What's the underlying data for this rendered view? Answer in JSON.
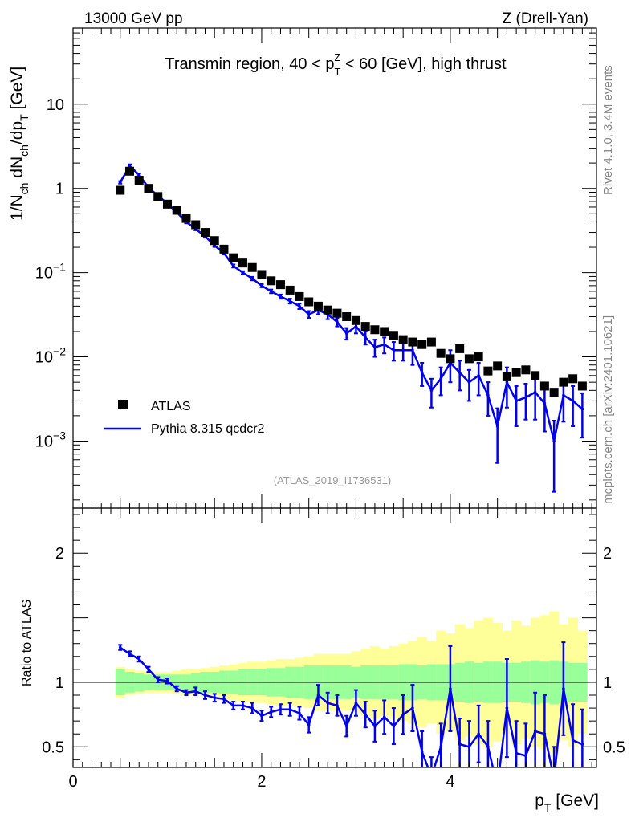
{
  "header": {
    "energy_label": "13000 GeV pp",
    "process_label": "Z (Drell-Yan)",
    "rivet_label": "Rivet 4.1.0,  3.4M events",
    "mcplots_label": "mcplots.cern.ch [arXiv:2401.10621]",
    "analysis_label": "(ATLAS_2019_I1736531)"
  },
  "title": {
    "pre": "Transmin region, 40 < p",
    "sub": "T",
    "sup": "Z",
    "post": " < 60 [GeV], high thrust"
  },
  "axes": {
    "ylabel_main": "1/N",
    "ylabel_main_sub1": "ch",
    "ylabel_main_mid": " dN",
    "ylabel_main_sub2": "ch",
    "ylabel_main_mid2": "/dp",
    "ylabel_main_sub3": "T",
    "ylabel_main_unit": " [GeV]",
    "ylabel_ratio": "Ratio to ATLAS",
    "xlabel": "p",
    "xlabel_sub": "T",
    "xlabel_unit": " [GeV]"
  },
  "legend": {
    "data_label": "ATLAS",
    "mc_label": "Pythia 8.315 qcdcr2"
  },
  "colors": {
    "data": "#000000",
    "mc": "#0000ee",
    "band_inner": "#99ff99",
    "band_outer": "#ffff99"
  },
  "chart_data": {
    "type": "scatter",
    "xlim": [
      0,
      5.55
    ],
    "main_ylim": [
      0.00016,
      80
    ],
    "main_yscale": "log",
    "ratio_ylim": [
      0.34,
      2.35
    ],
    "x_ticks": [
      "0",
      "2",
      "4"
    ],
    "main_y_ticks": [
      {
        "value": 10,
        "base": "10",
        "exp": ""
      },
      {
        "value": 1,
        "base": "1",
        "exp": ""
      },
      {
        "value": 0.1,
        "base": "10",
        "exp": "−1"
      },
      {
        "value": 0.01,
        "base": "10",
        "exp": "−2"
      },
      {
        "value": 0.001,
        "base": "10",
        "exp": "−3"
      }
    ],
    "ratio_y_ticks": [
      "0.5",
      "1",
      "2"
    ],
    "x": [
      0.5,
      0.6,
      0.7,
      0.8,
      0.9,
      1.0,
      1.1,
      1.2,
      1.3,
      1.4,
      1.5,
      1.6,
      1.7,
      1.8,
      1.9,
      2.0,
      2.1,
      2.2,
      2.3,
      2.4,
      2.5,
      2.6,
      2.7,
      2.8,
      2.9,
      3.0,
      3.1,
      3.2,
      3.3,
      3.4,
      3.5,
      3.6,
      3.7,
      3.8,
      3.9,
      4.0,
      4.1,
      4.2,
      4.3,
      4.4,
      4.5,
      4.6,
      4.7,
      4.8,
      4.9,
      5.0,
      5.1,
      5.2,
      5.3,
      5.4
    ],
    "series": [
      {
        "name": "ATLAS",
        "values": [
          0.95,
          1.6,
          1.25,
          1.0,
          0.8,
          0.65,
          0.55,
          0.44,
          0.37,
          0.3,
          0.24,
          0.19,
          0.15,
          0.13,
          0.115,
          0.095,
          0.08,
          0.072,
          0.062,
          0.052,
          0.045,
          0.04,
          0.036,
          0.033,
          0.03,
          0.027,
          0.023,
          0.021,
          0.02,
          0.018,
          0.016,
          0.015,
          0.014,
          0.015,
          0.011,
          0.0095,
          0.0125,
          0.0095,
          0.01,
          0.0068,
          0.0078,
          0.0058,
          0.0065,
          0.007,
          0.006,
          0.0045,
          0.0038,
          0.005,
          0.0055,
          0.0045
        ]
      },
      {
        "name": "Pythia 8.315 qcdcr2",
        "values": [
          1.18,
          1.85,
          1.45,
          1.02,
          0.82,
          0.66,
          0.52,
          0.4,
          0.33,
          0.27,
          0.21,
          0.17,
          0.12,
          0.1,
          0.085,
          0.07,
          0.06,
          0.052,
          0.046,
          0.04,
          0.032,
          0.036,
          0.032,
          0.026,
          0.019,
          0.023,
          0.017,
          0.013,
          0.014,
          0.012,
          0.012,
          0.012,
          0.0065,
          0.004,
          0.0055,
          0.0085,
          0.0065,
          0.005,
          0.006,
          0.0035,
          0.0015,
          0.005,
          0.003,
          0.0033,
          0.0038,
          0.0028,
          0.001,
          0.0035,
          0.003,
          0.0024
        ],
        "errors": [
          0.04,
          0.08,
          0.05,
          0.04,
          0.03,
          0.02,
          0.02,
          0.015,
          0.012,
          0.01,
          0.008,
          0.006,
          0.005,
          0.004,
          0.004,
          0.003,
          0.003,
          0.003,
          0.003,
          0.003,
          0.003,
          0.004,
          0.004,
          0.003,
          0.003,
          0.004,
          0.003,
          0.003,
          0.003,
          0.003,
          0.003,
          0.004,
          0.002,
          0.0015,
          0.002,
          0.0035,
          0.0025,
          0.002,
          0.0025,
          0.0015,
          0.00095,
          0.0025,
          0.0015,
          0.0015,
          0.002,
          0.0015,
          0.00075,
          0.0018,
          0.0015,
          0.0013
        ]
      }
    ],
    "ratio": {
      "name": "Pythia 8.315 qcdcr2 / ATLAS",
      "values": [
        1.27,
        1.22,
        1.18,
        1.1,
        1.02,
        1.01,
        0.95,
        0.92,
        0.93,
        0.9,
        0.88,
        0.87,
        0.82,
        0.82,
        0.8,
        0.74,
        0.77,
        0.79,
        0.79,
        0.76,
        0.67,
        0.9,
        0.84,
        0.82,
        0.66,
        0.84,
        0.75,
        0.66,
        0.73,
        0.66,
        0.75,
        0.8,
        0.46,
        0.27,
        0.5,
        0.95,
        0.52,
        0.5,
        0.6,
        0.5,
        0.19,
        0.8,
        0.45,
        0.43,
        0.62,
        0.6,
        0.25,
        0.95,
        0.55,
        0.52
      ],
      "errors": [
        0.02,
        0.02,
        0.02,
        0.02,
        0.02,
        0.02,
        0.02,
        0.02,
        0.03,
        0.03,
        0.03,
        0.03,
        0.03,
        0.03,
        0.04,
        0.04,
        0.04,
        0.04,
        0.05,
        0.05,
        0.06,
        0.08,
        0.08,
        0.08,
        0.08,
        0.1,
        0.1,
        0.12,
        0.13,
        0.14,
        0.15,
        0.18,
        0.16,
        0.15,
        0.18,
        0.33,
        0.2,
        0.2,
        0.22,
        0.2,
        0.15,
        0.38,
        0.25,
        0.25,
        0.3,
        0.3,
        0.25,
        0.36,
        0.28,
        0.27
      ]
    },
    "uncertainty_band": {
      "inner_half_width": [
        0.1,
        0.08,
        0.07,
        0.06,
        0.06,
        0.06,
        0.06,
        0.06,
        0.07,
        0.08,
        0.08,
        0.09,
        0.09,
        0.1,
        0.1,
        0.1,
        0.11,
        0.11,
        0.12,
        0.12,
        0.13,
        0.13,
        0.13,
        0.13,
        0.13,
        0.12,
        0.13,
        0.13,
        0.13,
        0.13,
        0.14,
        0.14,
        0.13,
        0.14,
        0.14,
        0.14,
        0.15,
        0.16,
        0.15,
        0.16,
        0.16,
        0.15,
        0.15,
        0.16,
        0.17,
        0.16,
        0.17,
        0.16,
        0.15,
        0.15
      ],
      "outer_half_width": [
        0.12,
        0.1,
        0.09,
        0.08,
        0.08,
        0.08,
        0.09,
        0.1,
        0.1,
        0.11,
        0.12,
        0.13,
        0.14,
        0.15,
        0.16,
        0.16,
        0.17,
        0.18,
        0.18,
        0.19,
        0.2,
        0.22,
        0.22,
        0.22,
        0.22,
        0.24,
        0.26,
        0.28,
        0.26,
        0.28,
        0.3,
        0.32,
        0.35,
        0.32,
        0.4,
        0.38,
        0.45,
        0.42,
        0.48,
        0.5,
        0.46,
        0.4,
        0.48,
        0.44,
        0.5,
        0.52,
        0.55,
        0.45,
        0.5,
        0.4
      ]
    }
  }
}
